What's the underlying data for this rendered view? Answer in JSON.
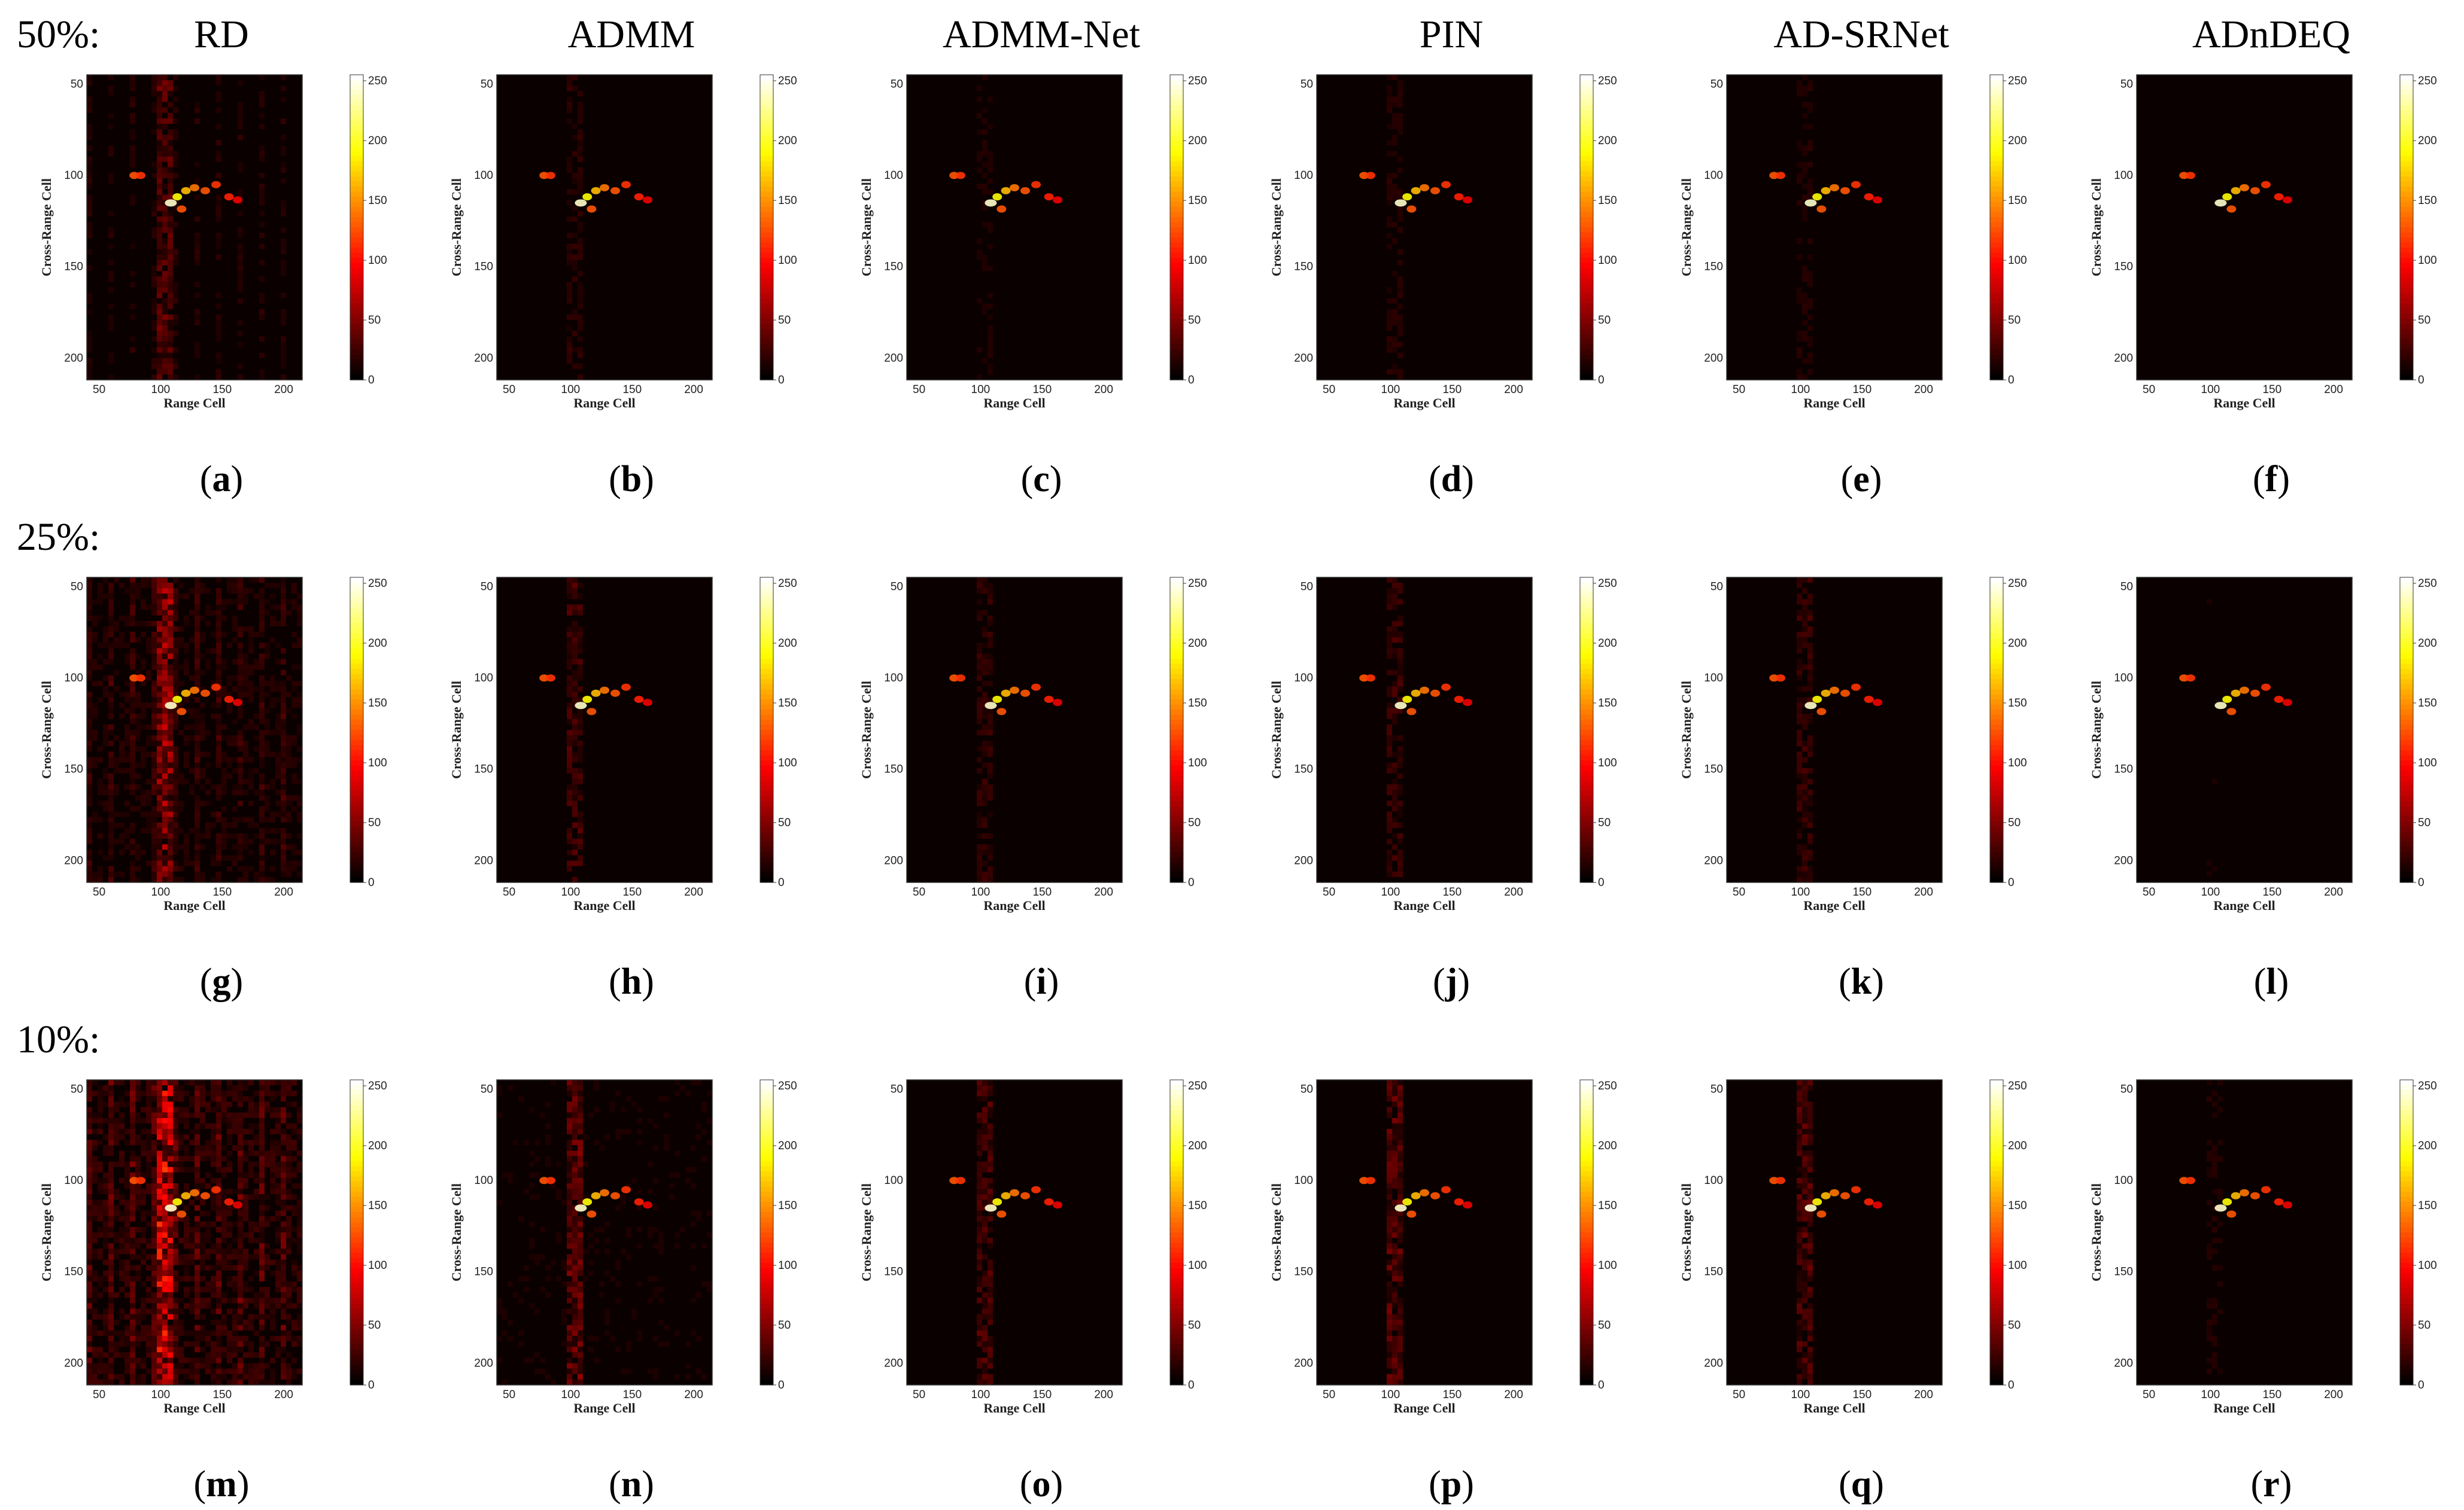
{
  "figure": {
    "methods": [
      "RD",
      "ADMM",
      "ADMM-Net",
      "PIN",
      "AD-SRNet",
      "ADnDEQ"
    ],
    "rows": [
      {
        "label": "50%:",
        "captions": [
          "a",
          "b",
          "c",
          "d",
          "e",
          "f"
        ]
      },
      {
        "label": "25%:",
        "captions": [
          "g",
          "h",
          "i",
          "j",
          "k",
          "l"
        ]
      },
      {
        "label": "10%:",
        "captions": [
          "m",
          "n",
          "o",
          "p",
          "q",
          "r"
        ]
      }
    ]
  },
  "chart_data": {
    "type": "heatmap",
    "xlabel": "Range Cell",
    "ylabel": "Cross-Range Cell",
    "x_ticks": [
      "50",
      "100",
      "150",
      "200"
    ],
    "y_ticks": [
      "50",
      "100",
      "150",
      "200"
    ],
    "colorbar_ticks": [
      "250",
      "200",
      "150",
      "100",
      "50",
      "0"
    ],
    "colorbar_range": [
      0,
      255
    ],
    "colormap": "hot"
  }
}
